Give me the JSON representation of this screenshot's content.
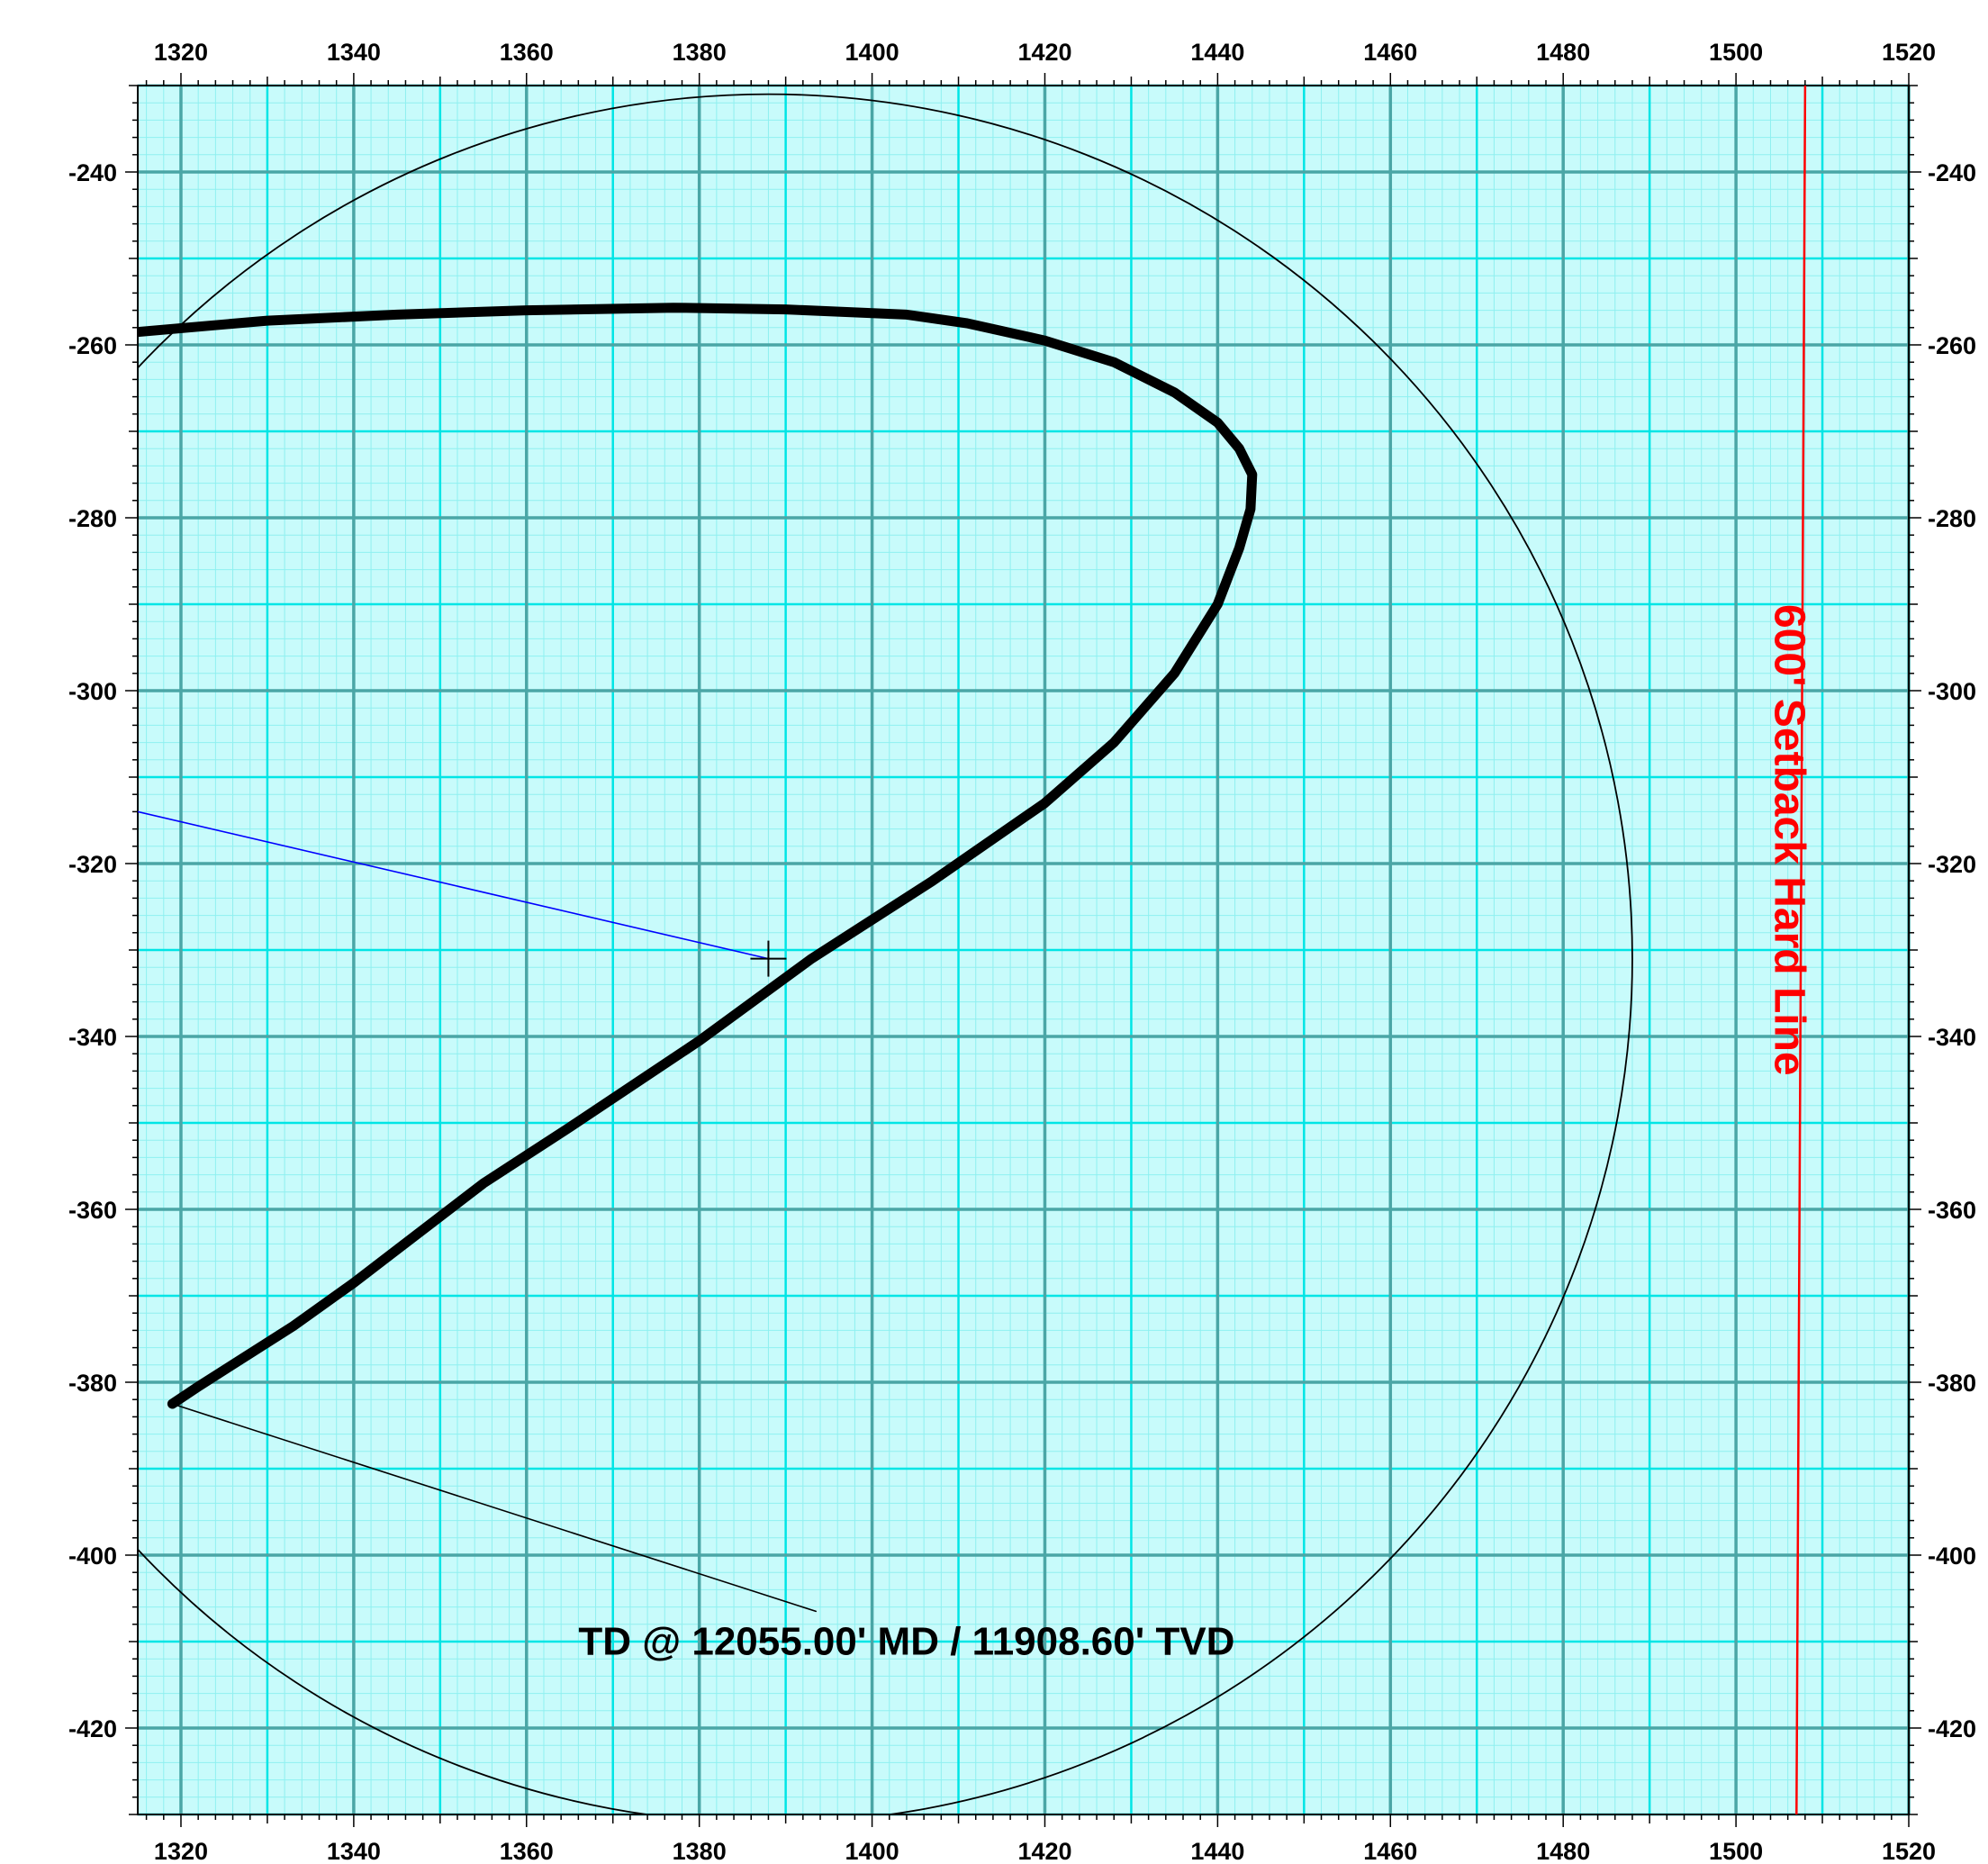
{
  "chart_data": {
    "type": "line",
    "title": "",
    "xlabel": "",
    "ylabel": "",
    "xlim": [
      1315,
      1520
    ],
    "ylim": [
      -430,
      -230
    ],
    "x_ticks": [
      1320,
      1340,
      1360,
      1380,
      1400,
      1420,
      1440,
      1460,
      1480,
      1500,
      1520
    ],
    "y_ticks": [
      -240,
      -260,
      -280,
      -300,
      -320,
      -340,
      -360,
      -380,
      -400,
      -420
    ],
    "grid": {
      "on": true,
      "major_step": 20,
      "mid_step": 10,
      "minor_step": 2,
      "major_color": "#4aa6a6",
      "mid_color": "#00e5e5",
      "minor_color": "#8ff0f0",
      "background": "#c8fbfb"
    },
    "series": [
      {
        "style": "thick-black",
        "color": "#000000",
        "points": [
          [
            1315,
            -258.5
          ],
          [
            1330,
            -257.2
          ],
          [
            1345,
            -256.5
          ],
          [
            1360,
            -256.0
          ],
          [
            1377,
            -255.7
          ],
          [
            1390,
            -255.9
          ],
          [
            1404,
            -256.5
          ],
          [
            1411,
            -257.5
          ],
          [
            1420,
            -259.5
          ],
          [
            1428,
            -262.0
          ],
          [
            1435,
            -265.5
          ],
          [
            1440,
            -269.0
          ],
          [
            1442.5,
            -272.0
          ],
          [
            1444,
            -275.0
          ],
          [
            1443.8,
            -279.0
          ],
          [
            1442.5,
            -283.5
          ],
          [
            1440,
            -290.0
          ],
          [
            1435,
            -298.0
          ],
          [
            1428,
            -306.0
          ],
          [
            1420,
            -313.0
          ],
          [
            1407,
            -322.0
          ],
          [
            1393,
            -331.0
          ],
          [
            1380,
            -340.5
          ],
          [
            1365,
            -350.5
          ],
          [
            1355,
            -357.0
          ],
          [
            1340,
            -368.5
          ],
          [
            1333,
            -373.5
          ],
          [
            1322,
            -380.5
          ],
          [
            1319,
            -382.5
          ]
        ]
      },
      {
        "style": "thin-black-circle",
        "color": "#000000",
        "center": [
          1388,
          -331
        ],
        "radius": 100
      },
      {
        "style": "setback-line",
        "color": "#ff0000",
        "points": [
          [
            1508,
            -230
          ],
          [
            1507,
            -430
          ]
        ]
      },
      {
        "style": "blue-leader",
        "color": "#0000ff",
        "points": [
          [
            1315,
            -314
          ],
          [
            1388,
            -331
          ]
        ]
      },
      {
        "style": "black-leader",
        "color": "#000000",
        "points": [
          [
            1319,
            -382.5
          ],
          [
            1393.5,
            -406.5
          ]
        ]
      }
    ],
    "marker": {
      "type": "cross",
      "x": 1388,
      "y": -331
    },
    "annotations": [
      {
        "text": "TD @ 12055.00' MD / 11908.60' TVD",
        "x": 1366,
        "y": -411.5,
        "color": "#000000"
      },
      {
        "text": "600' Setback Hard Line",
        "x": 1504.5,
        "y": -290,
        "color": "#ff0000",
        "rotation": 90
      }
    ]
  }
}
